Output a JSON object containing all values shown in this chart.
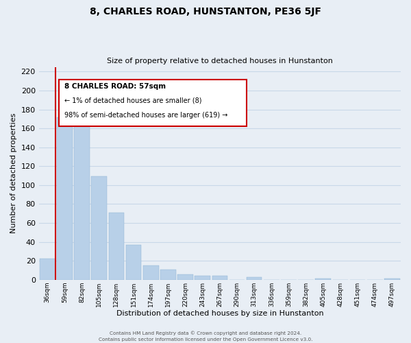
{
  "title": "8, CHARLES ROAD, HUNSTANTON, PE36 5JF",
  "subtitle": "Size of property relative to detached houses in Hunstanton",
  "xlabel": "Distribution of detached houses by size in Hunstanton",
  "ylabel": "Number of detached properties",
  "bin_labels": [
    "36sqm",
    "59sqm",
    "82sqm",
    "105sqm",
    "128sqm",
    "151sqm",
    "174sqm",
    "197sqm",
    "220sqm",
    "243sqm",
    "267sqm",
    "290sqm",
    "313sqm",
    "336sqm",
    "359sqm",
    "382sqm",
    "405sqm",
    "428sqm",
    "451sqm",
    "474sqm",
    "497sqm"
  ],
  "bar_heights": [
    22,
    172,
    179,
    109,
    71,
    37,
    15,
    11,
    6,
    4,
    4,
    0,
    3,
    0,
    0,
    0,
    1,
    0,
    0,
    0,
    1
  ],
  "bar_color": "#b8d0e8",
  "vline_color": "#cc0000",
  "ylim": [
    0,
    225
  ],
  "yticks": [
    0,
    20,
    40,
    60,
    80,
    100,
    120,
    140,
    160,
    180,
    200,
    220
  ],
  "marker_label": "8 CHARLES ROAD: 57sqm",
  "annotation_line1": "← 1% of detached houses are smaller (8)",
  "annotation_line2": "98% of semi-detached houses are larger (619) →",
  "box_facecolor": "#ffffff",
  "box_edgecolor": "#cc0000",
  "footer1": "Contains HM Land Registry data © Crown copyright and database right 2024.",
  "footer2": "Contains public sector information licensed under the Open Government Licence v3.0.",
  "grid_color": "#c8d8e8",
  "background_color": "#e8eef5"
}
